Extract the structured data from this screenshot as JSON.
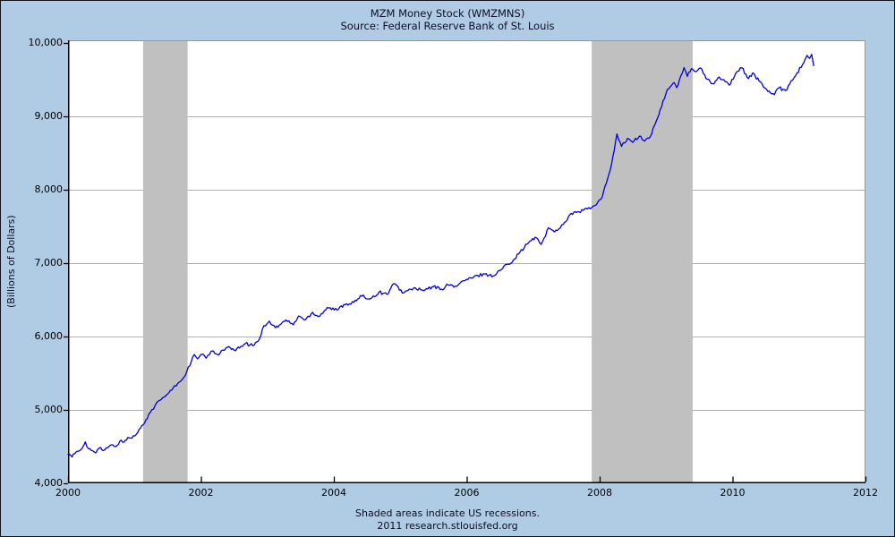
{
  "window": {
    "background_color": "#b0cce4",
    "border_color": "#13131f"
  },
  "header": {
    "title": "MZM Money Stock (WMZMNS)",
    "subtitle": "Source: Federal Reserve Bank of St. Louis"
  },
  "footer": {
    "line1": "Shaded areas indicate US recessions.",
    "line2": "2011 research.stlouisfed.org"
  },
  "chart_data": {
    "type": "line",
    "title": "MZM Money Stock (WMZMNS)",
    "subtitle": "Source: Federal Reserve Bank of St. Louis",
    "xlabel": "",
    "ylabel": "(Billions of Dollars)",
    "x_range": [
      2000,
      2012
    ],
    "y_range": [
      4000,
      10000
    ],
    "grid": "horizontal-only",
    "legend": "none",
    "x_ticks": [
      {
        "v": 2000,
        "label": "2000"
      },
      {
        "v": 2002,
        "label": "2002"
      },
      {
        "v": 2004,
        "label": "2004"
      },
      {
        "v": 2006,
        "label": "2006"
      },
      {
        "v": 2008,
        "label": "2008"
      },
      {
        "v": 2010,
        "label": "2010"
      },
      {
        "v": 2012,
        "label": "2012"
      }
    ],
    "y_ticks": [
      {
        "v": 4000,
        "label": "4,000"
      },
      {
        "v": 5000,
        "label": "5,000"
      },
      {
        "v": 6000,
        "label": "6,000"
      },
      {
        "v": 7000,
        "label": "7,000"
      },
      {
        "v": 8000,
        "label": "8,000"
      },
      {
        "v": 9000,
        "label": "9,000"
      },
      {
        "v": 10000,
        "label": "10,000"
      }
    ],
    "colors": {
      "line": "#0000dd",
      "recession_band": "#c0c0c0",
      "gridline": "#b0b0b0",
      "axis_black": "#000000",
      "frame_gray": "#9a9a9a",
      "plot_background": "#ffffff"
    },
    "recession_bands": [
      {
        "start": 2001.13,
        "end": 2001.8
      },
      {
        "start": 2007.88,
        "end": 2009.4
      }
    ],
    "series": [
      {
        "name": "MZM Money Stock (WMZMNS), weekly, billions of dollars",
        "points": [
          [
            2000.0,
            4395
          ],
          [
            2000.06,
            4360
          ],
          [
            2000.12,
            4425
          ],
          [
            2000.19,
            4455
          ],
          [
            2000.26,
            4565
          ],
          [
            2000.31,
            4470
          ],
          [
            2000.37,
            4445
          ],
          [
            2000.42,
            4415
          ],
          [
            2000.47,
            4480
          ],
          [
            2000.53,
            4445
          ],
          [
            2000.6,
            4485
          ],
          [
            2000.67,
            4525
          ],
          [
            2000.72,
            4500
          ],
          [
            2000.78,
            4575
          ],
          [
            2000.84,
            4560
          ],
          [
            2000.9,
            4625
          ],
          [
            2000.96,
            4615
          ],
          [
            2001.05,
            4695
          ],
          [
            2001.11,
            4785
          ],
          [
            2001.17,
            4865
          ],
          [
            2001.24,
            4970
          ],
          [
            2001.31,
            5060
          ],
          [
            2001.38,
            5130
          ],
          [
            2001.45,
            5175
          ],
          [
            2001.52,
            5235
          ],
          [
            2001.58,
            5295
          ],
          [
            2001.65,
            5360
          ],
          [
            2001.72,
            5415
          ],
          [
            2001.79,
            5530
          ],
          [
            2001.85,
            5645
          ],
          [
            2001.9,
            5755
          ],
          [
            2001.95,
            5695
          ],
          [
            2002.02,
            5760
          ],
          [
            2002.08,
            5705
          ],
          [
            2002.15,
            5795
          ],
          [
            2002.25,
            5755
          ],
          [
            2002.33,
            5815
          ],
          [
            2002.4,
            5855
          ],
          [
            2002.52,
            5805
          ],
          [
            2002.6,
            5865
          ],
          [
            2002.67,
            5905
          ],
          [
            2002.78,
            5875
          ],
          [
            2002.88,
            5965
          ],
          [
            2002.95,
            6150
          ],
          [
            2003.03,
            6210
          ],
          [
            2003.12,
            6120
          ],
          [
            2003.2,
            6165
          ],
          [
            2003.28,
            6225
          ],
          [
            2003.39,
            6160
          ],
          [
            2003.47,
            6280
          ],
          [
            2003.57,
            6225
          ],
          [
            2003.68,
            6330
          ],
          [
            2003.77,
            6270
          ],
          [
            2003.9,
            6395
          ],
          [
            2004.05,
            6360
          ],
          [
            2004.15,
            6435
          ],
          [
            2004.3,
            6465
          ],
          [
            2004.42,
            6550
          ],
          [
            2004.55,
            6515
          ],
          [
            2004.68,
            6605
          ],
          [
            2004.8,
            6575
          ],
          [
            2004.9,
            6720
          ],
          [
            2005.05,
            6595
          ],
          [
            2005.2,
            6660
          ],
          [
            2005.35,
            6625
          ],
          [
            2005.5,
            6680
          ],
          [
            2005.62,
            6645
          ],
          [
            2005.72,
            6705
          ],
          [
            2005.85,
            6685
          ],
          [
            2005.95,
            6760
          ],
          [
            2006.1,
            6805
          ],
          [
            2006.25,
            6855
          ],
          [
            2006.4,
            6825
          ],
          [
            2006.5,
            6900
          ],
          [
            2006.6,
            6980
          ],
          [
            2006.7,
            7040
          ],
          [
            2006.8,
            7150
          ],
          [
            2006.95,
            7300
          ],
          [
            2007.05,
            7345
          ],
          [
            2007.12,
            7255
          ],
          [
            2007.23,
            7480
          ],
          [
            2007.32,
            7425
          ],
          [
            2007.45,
            7525
          ],
          [
            2007.55,
            7660
          ],
          [
            2007.65,
            7690
          ],
          [
            2007.75,
            7720
          ],
          [
            2007.88,
            7755
          ],
          [
            2007.95,
            7795
          ],
          [
            2008.04,
            7905
          ],
          [
            2008.1,
            8085
          ],
          [
            2008.18,
            8355
          ],
          [
            2008.26,
            8760
          ],
          [
            2008.33,
            8590
          ],
          [
            2008.42,
            8700
          ],
          [
            2008.5,
            8645
          ],
          [
            2008.6,
            8730
          ],
          [
            2008.68,
            8665
          ],
          [
            2008.76,
            8720
          ],
          [
            2008.85,
            8930
          ],
          [
            2008.93,
            9125
          ],
          [
            2009.0,
            9320
          ],
          [
            2009.06,
            9400
          ],
          [
            2009.12,
            9460
          ],
          [
            2009.16,
            9390
          ],
          [
            2009.22,
            9550
          ],
          [
            2009.27,
            9665
          ],
          [
            2009.32,
            9545
          ],
          [
            2009.38,
            9650
          ],
          [
            2009.45,
            9610
          ],
          [
            2009.52,
            9660
          ],
          [
            2009.6,
            9515
          ],
          [
            2009.7,
            9445
          ],
          [
            2009.8,
            9535
          ],
          [
            2009.87,
            9500
          ],
          [
            2009.95,
            9425
          ],
          [
            2010.05,
            9590
          ],
          [
            2010.14,
            9660
          ],
          [
            2010.24,
            9515
          ],
          [
            2010.3,
            9590
          ],
          [
            2010.4,
            9480
          ],
          [
            2010.49,
            9385
          ],
          [
            2010.57,
            9320
          ],
          [
            2010.63,
            9295
          ],
          [
            2010.7,
            9390
          ],
          [
            2010.8,
            9350
          ],
          [
            2010.88,
            9480
          ],
          [
            2010.97,
            9590
          ],
          [
            2011.05,
            9700
          ],
          [
            2011.12,
            9830
          ],
          [
            2011.16,
            9790
          ],
          [
            2011.19,
            9845
          ],
          [
            2011.22,
            9690
          ]
        ]
      }
    ]
  }
}
